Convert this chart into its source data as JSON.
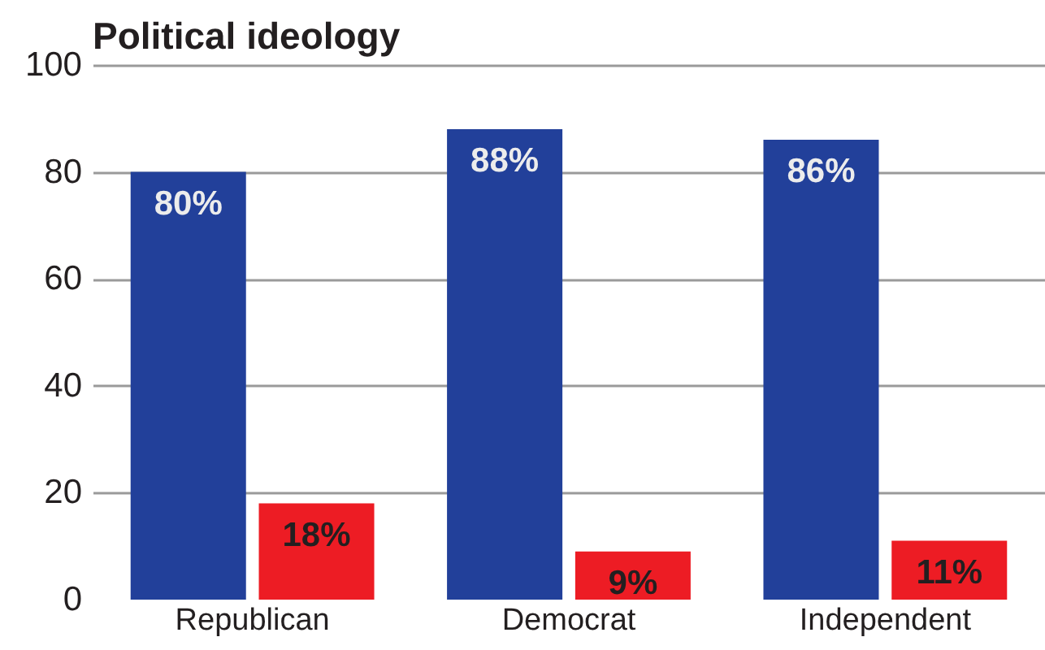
{
  "chart_data": {
    "type": "bar",
    "title": "Political ideology",
    "categories": [
      "Republican",
      "Democrat",
      "Independent"
    ],
    "series": [
      {
        "color": "#22409a",
        "values": [
          80,
          88,
          86
        ],
        "value_labels": [
          "80%",
          "88%",
          "86%"
        ]
      },
      {
        "color": "#ed1c24",
        "values": [
          18,
          9,
          11
        ],
        "value_labels": [
          "18%",
          "9%",
          "11%"
        ]
      }
    ],
    "ylim": [
      0,
      100
    ],
    "yticks": [
      0,
      20,
      40,
      60,
      80,
      100
    ],
    "grid": "y",
    "legend": false
  }
}
